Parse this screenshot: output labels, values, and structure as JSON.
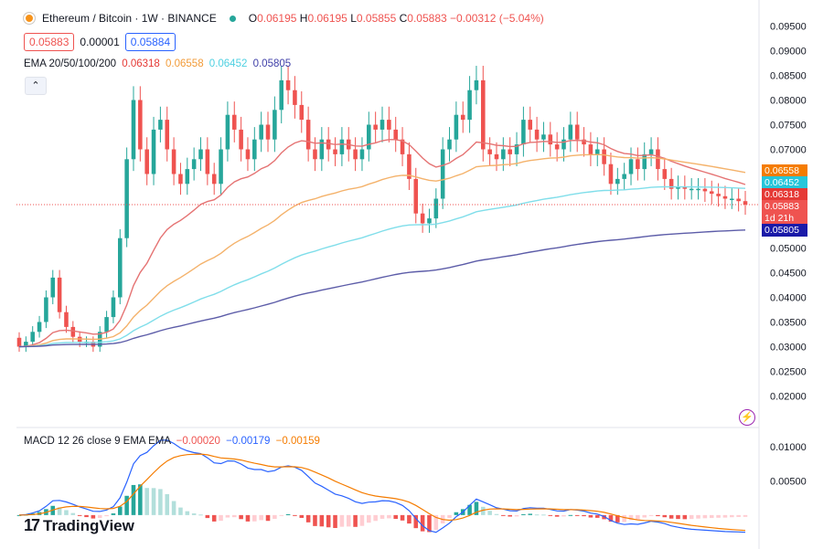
{
  "header": {
    "symbol": "Ethereum / Bitcoin · 1W · BINANCE",
    "ohlc": [
      {
        "label": "O",
        "value": "0.06195"
      },
      {
        "label": "H",
        "value": "0.06195"
      },
      {
        "label": "L",
        "value": "0.05855"
      },
      {
        "label": "C",
        "value": "0.05883"
      }
    ],
    "change": "−0.00312 (−5.04%)",
    "bid": "0.05883",
    "spread": "0.00001",
    "ask": "0.05884"
  },
  "ema_legend": {
    "label": "EMA 20/50/100/200",
    "values": [
      {
        "text": "0.06318",
        "color": "#e53935"
      },
      {
        "text": "0.06558",
        "color": "#f29b38"
      },
      {
        "text": "0.06452",
        "color": "#4dd0e1"
      },
      {
        "text": "0.05805",
        "color": "#3f3fa8"
      }
    ]
  },
  "macd_legend": {
    "label": "MACD 12 26 close 9 EMA EMA",
    "values": [
      {
        "text": "−0.00020",
        "color": "#ef5350"
      },
      {
        "text": "−0.00179",
        "color": "#2962ff"
      },
      {
        "text": "−0.00159",
        "color": "#f57c00"
      }
    ]
  },
  "price_labels": [
    {
      "text": "0.06558",
      "value": 0.06558,
      "color": "#f57c00"
    },
    {
      "text": "0.06452",
      "value": 0.06452,
      "color": "#26c6da"
    },
    {
      "text": "0.06318",
      "value": 0.06318,
      "color": "#e53935"
    },
    {
      "text": "0.05883",
      "value": 0.05883,
      "color": "#ef5350"
    },
    {
      "text": "1d 21h",
      "value": 0.05883,
      "color": "#ef5350"
    },
    {
      "text": "0.05805",
      "value": 0.05805,
      "color": "#1a1aa8"
    }
  ],
  "branding": "TradingView",
  "collapse_glyph": "⌃",
  "bolt_glyph": "⚡",
  "colors": {
    "up": "#26a69a",
    "down": "#ef5350"
  },
  "chart_data": [
    {
      "type": "candlestick",
      "yticks": [
        "0.09500",
        "0.09000",
        "0.08500",
        "0.08000",
        "0.07500",
        "0.07000",
        "0.06500",
        "0.06000",
        "0.05500",
        "0.05000",
        "0.04500",
        "0.04000",
        "0.03500",
        "0.03000",
        "0.02500",
        "0.02000"
      ],
      "ylim": [
        0.0175,
        0.0975
      ],
      "grid": false,
      "close": [
        0.03,
        0.031,
        0.033,
        0.035,
        0.04,
        0.044,
        0.037,
        0.034,
        0.032,
        0.031,
        0.031,
        0.03,
        0.033,
        0.036,
        0.04,
        0.052,
        0.068,
        0.08,
        0.07,
        0.065,
        0.074,
        0.076,
        0.07,
        0.065,
        0.063,
        0.066,
        0.068,
        0.07,
        0.065,
        0.063,
        0.07,
        0.077,
        0.074,
        0.07,
        0.068,
        0.072,
        0.075,
        0.072,
        0.078,
        0.084,
        0.082,
        0.079,
        0.076,
        0.07,
        0.068,
        0.072,
        0.07,
        0.069,
        0.072,
        0.07,
        0.068,
        0.07,
        0.075,
        0.074,
        0.076,
        0.074,
        0.072,
        0.069,
        0.064,
        0.057,
        0.055,
        0.056,
        0.06,
        0.07,
        0.072,
        0.077,
        0.076,
        0.082,
        0.084,
        0.07,
        0.069,
        0.068,
        0.07,
        0.069,
        0.071,
        0.076,
        0.074,
        0.072,
        0.073,
        0.071,
        0.07,
        0.072,
        0.075,
        0.072,
        0.071,
        0.069,
        0.07,
        0.067,
        0.063,
        0.064,
        0.065,
        0.068,
        0.066,
        0.069,
        0.07,
        0.066,
        0.064,
        0.062,
        0.0625,
        0.062,
        0.062,
        0.062,
        0.0615,
        0.061,
        0.0605,
        0.06,
        0.06,
        0.0595,
        0.0588
      ]
    },
    {
      "type": "line",
      "series": [
        {
          "name": "EMA 20",
          "color": "#e57373"
        },
        {
          "name": "EMA 50",
          "color": "#f4b26b"
        },
        {
          "name": "EMA 100",
          "color": "#80deea"
        },
        {
          "name": "EMA 200",
          "color": "#5c5ca8"
        }
      ]
    },
    {
      "type": "bar+line",
      "yticks": [
        "0.01000",
        "0.00500"
      ],
      "ylim": [
        -0.0035,
        0.0115
      ]
    }
  ]
}
